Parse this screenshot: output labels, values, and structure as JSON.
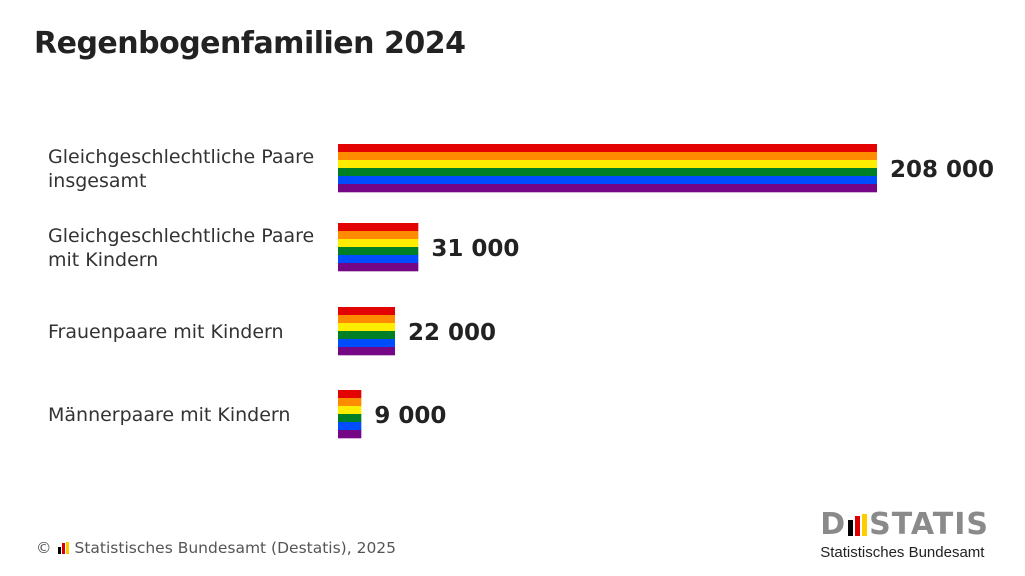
{
  "header": {
    "title": "Regenbogenfamilien 2024"
  },
  "chart_data": {
    "type": "bar",
    "orientation": "horizontal",
    "title": "Regenbogenfamilien 2024",
    "categories": [
      [
        "Gleichgeschlechtliche Paare",
        "insgesamt"
      ],
      [
        "Gleichgeschlechtliche Paare",
        "mit Kindern"
      ],
      [
        "Frauenpaare mit Kindern"
      ],
      [
        "Männerpaare mit Kindern"
      ]
    ],
    "values": [
      208000,
      31000,
      22000,
      9000
    ],
    "value_labels": [
      "208 000",
      "31 000",
      "22 000",
      "9 000"
    ],
    "xlim": [
      0,
      208000
    ],
    "grid": false,
    "legend": "none",
    "bar_fill": "rainbow-stripes",
    "stripe_colors": [
      "#e40303",
      "#ff8c00",
      "#ffed00",
      "#008026",
      "#004dff",
      "#750787"
    ]
  },
  "footer": {
    "copyright": "© ",
    "source": "Statistisches Bundesamt (Destatis), 2025"
  },
  "brand": {
    "wordmark_left": "D",
    "wordmark_right": "STATIS",
    "subtitle": "Statistisches Bundesamt",
    "flag_colors": [
      "#000000",
      "#dd0000",
      "#ffcc00"
    ]
  }
}
